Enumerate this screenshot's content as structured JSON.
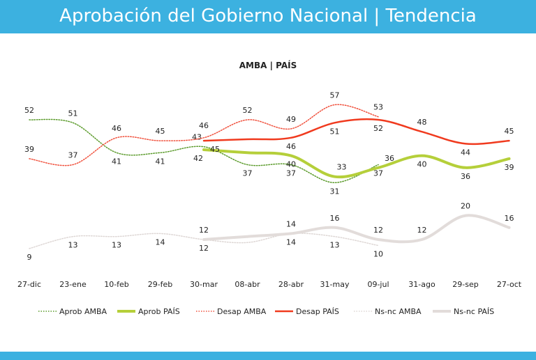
{
  "header": {
    "title": "Aprobación del Gobierno Nacional | Tendencia"
  },
  "chart_data": {
    "type": "line",
    "title": "AMBA | PAÍS",
    "categories": [
      "27-dic",
      "23-ene",
      "10-feb",
      "29-feb",
      "30-mar",
      "08-abr",
      "28-abr",
      "31-may",
      "09-jul",
      "31-ago",
      "29-sep",
      "27-oct"
    ],
    "ylim": [
      0,
      60
    ],
    "grid": false,
    "legend_position": "bottom",
    "series": [
      {
        "name": "Aprob AMBA",
        "color": "#5a9a2a",
        "style": "dotted",
        "values": [
          52,
          51,
          41,
          41,
          43,
          37,
          37,
          31,
          37,
          null,
          null,
          null
        ],
        "labels": [
          52,
          51,
          41,
          41,
          43,
          37,
          37,
          31,
          37,
          null,
          null,
          null
        ]
      },
      {
        "name": "Aprob PAÍS",
        "color": "#b5cf3a",
        "style": "thick",
        "values": [
          null,
          null,
          null,
          null,
          42,
          41,
          40,
          33,
          36,
          40,
          36,
          39
        ],
        "labels": [
          null,
          null,
          null,
          null,
          42,
          null,
          40,
          33,
          36,
          40,
          36,
          39
        ]
      },
      {
        "name": "Desap AMBA",
        "color": "#f0503c",
        "style": "dotted",
        "values": [
          39,
          37,
          46,
          45,
          46,
          52,
          49,
          57,
          53,
          null,
          null,
          null
        ],
        "labels": [
          39,
          37,
          46,
          45,
          46,
          52,
          49,
          57,
          53,
          null,
          null,
          null
        ]
      },
      {
        "name": "Desap PAÍS",
        "color": "#f03a1e",
        "style": "solid",
        "values": [
          null,
          null,
          null,
          null,
          45,
          45.5,
          46,
          51,
          52,
          48,
          44,
          45
        ],
        "labels": [
          null,
          null,
          null,
          null,
          45,
          null,
          46,
          51,
          52,
          48,
          44,
          45
        ]
      },
      {
        "name": "Ns-nc AMBA",
        "color": "#ddd6d4",
        "style": "dotted",
        "values": [
          9,
          13,
          13,
          14,
          12,
          11,
          14,
          13,
          10,
          null,
          null,
          null
        ],
        "labels": [
          9,
          13,
          13,
          14,
          12,
          null,
          14,
          13,
          10,
          null,
          null,
          null
        ]
      },
      {
        "name": "Ns-nc PAÍS",
        "color": "#e2dcda",
        "style": "thick",
        "values": [
          null,
          null,
          null,
          null,
          12,
          13,
          14,
          16,
          12,
          12,
          20,
          16
        ],
        "labels": [
          null,
          null,
          null,
          null,
          12,
          null,
          14,
          16,
          12,
          12,
          20,
          16
        ]
      }
    ]
  }
}
